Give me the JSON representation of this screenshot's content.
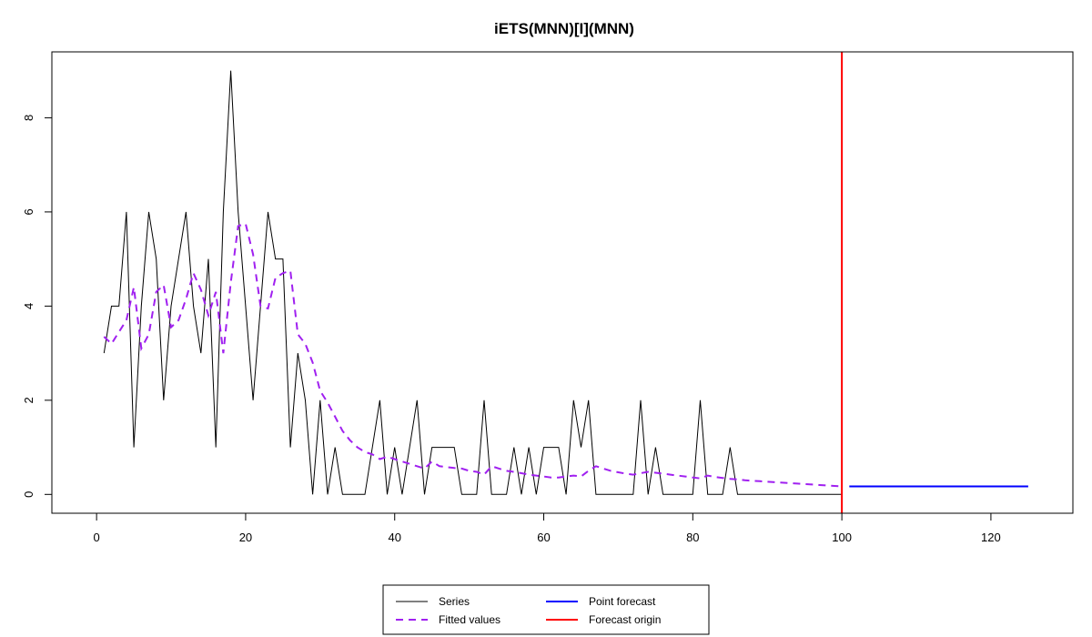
{
  "chart_data": {
    "type": "line",
    "title": "iETS(MNN)[I](MNN)",
    "xlabel": "",
    "ylabel": "",
    "xlim": [
      -6,
      131
    ],
    "ylim": [
      -0.4,
      9.4
    ],
    "xticks": [
      0,
      20,
      40,
      60,
      80,
      100,
      120
    ],
    "yticks": [
      0,
      2,
      4,
      6,
      8
    ],
    "grid": false,
    "legend_position": "bottom",
    "series": [
      {
        "name": "Series",
        "color": "#000000",
        "style": "solid",
        "x": [
          1,
          2,
          3,
          4,
          5,
          6,
          7,
          8,
          9,
          10,
          11,
          12,
          13,
          14,
          15,
          16,
          17,
          18,
          19,
          20,
          21,
          22,
          23,
          24,
          25,
          26,
          27,
          28,
          29,
          30,
          31,
          32,
          33,
          34,
          35,
          36,
          37,
          38,
          39,
          40,
          41,
          42,
          43,
          44,
          45,
          46,
          47,
          48,
          49,
          50,
          51,
          52,
          53,
          54,
          55,
          56,
          57,
          58,
          59,
          60,
          61,
          62,
          63,
          64,
          65,
          66,
          67,
          68,
          69,
          70,
          71,
          72,
          73,
          74,
          75,
          76,
          77,
          78,
          79,
          80,
          81,
          82,
          83,
          84,
          85,
          86,
          87,
          88,
          89,
          90,
          91,
          92,
          93,
          94,
          95,
          96,
          97,
          98,
          99,
          100
        ],
        "y": [
          3,
          4,
          4,
          6,
          1,
          4,
          6,
          5,
          2,
          4,
          5,
          6,
          4,
          3,
          5,
          1,
          6,
          9,
          6,
          4,
          2,
          4,
          6,
          5,
          5,
          1,
          3,
          2,
          0,
          2,
          0,
          1,
          0,
          0,
          0,
          0,
          1,
          2,
          0,
          1,
          0,
          1,
          2,
          0,
          1,
          1,
          1,
          1,
          0,
          0,
          0,
          2,
          0,
          0,
          0,
          1,
          0,
          1,
          0,
          1,
          1,
          1,
          0,
          2,
          1,
          2,
          0,
          0,
          0,
          0,
          0,
          0,
          2,
          0,
          1,
          0,
          0,
          0,
          0,
          0,
          2,
          0,
          0,
          0,
          1,
          0,
          0,
          0,
          0,
          0,
          0,
          0,
          0,
          0,
          0,
          0,
          0,
          0,
          0,
          0
        ]
      },
      {
        "name": "Fitted values",
        "color": "#a020f0",
        "style": "dashed",
        "x": [
          1,
          2,
          3,
          4,
          5,
          6,
          7,
          8,
          9,
          10,
          11,
          12,
          13,
          14,
          15,
          16,
          17,
          18,
          19,
          20,
          21,
          22,
          23,
          24,
          25,
          26,
          27,
          28,
          29,
          30,
          31,
          32,
          33,
          34,
          35,
          36,
          37,
          38,
          39,
          40,
          41,
          42,
          43,
          44,
          45,
          46,
          47,
          48,
          49,
          50,
          51,
          52,
          53,
          54,
          55,
          56,
          57,
          58,
          59,
          60,
          61,
          62,
          63,
          64,
          65,
          66,
          67,
          68,
          69,
          70,
          71,
          72,
          73,
          74,
          75,
          76,
          77,
          78,
          79,
          80,
          81,
          82,
          83,
          84,
          85,
          86,
          87,
          88,
          89,
          90,
          91,
          92,
          93,
          94,
          95,
          96,
          97,
          98,
          99,
          100
        ],
        "y": [
          3.35,
          3.2,
          3.45,
          3.7,
          4.4,
          3.1,
          3.4,
          4.3,
          4.45,
          3.55,
          3.7,
          4.15,
          4.7,
          4.35,
          3.8,
          4.3,
          3.0,
          4.5,
          5.7,
          5.75,
          5.1,
          4.0,
          3.95,
          4.6,
          4.7,
          4.75,
          3.4,
          3.2,
          2.8,
          2.2,
          1.95,
          1.65,
          1.35,
          1.15,
          1.0,
          0.9,
          0.85,
          0.75,
          0.8,
          0.75,
          0.7,
          0.65,
          0.6,
          0.55,
          0.7,
          0.6,
          0.58,
          0.56,
          0.55,
          0.5,
          0.48,
          0.42,
          0.6,
          0.55,
          0.5,
          0.48,
          0.45,
          0.42,
          0.4,
          0.38,
          0.36,
          0.36,
          0.38,
          0.4,
          0.38,
          0.5,
          0.6,
          0.55,
          0.5,
          0.47,
          0.44,
          0.42,
          0.45,
          0.48,
          0.46,
          0.44,
          0.42,
          0.4,
          0.38,
          0.36,
          0.34,
          0.4,
          0.37,
          0.35,
          0.33,
          0.32,
          0.3,
          0.29,
          0.28,
          0.27,
          0.26,
          0.25,
          0.24,
          0.23,
          0.22,
          0.21,
          0.2,
          0.19,
          0.18,
          0.17
        ]
      },
      {
        "name": "Point forecast",
        "color": "#0000ff",
        "style": "solid",
        "x": [
          101,
          125
        ],
        "y": [
          0.17,
          0.17
        ]
      }
    ],
    "vlines": [
      {
        "name": "Forecast origin",
        "color": "#ff0000",
        "x": 100
      }
    ]
  },
  "legend": {
    "items": [
      {
        "label": "Series",
        "color": "#000000",
        "dashed": false
      },
      {
        "label": "Fitted values",
        "color": "#a020f0",
        "dashed": true
      },
      {
        "label": "Point forecast",
        "color": "#0000ff",
        "dashed": false
      },
      {
        "label": "Forecast origin",
        "color": "#ff0000",
        "dashed": false
      }
    ]
  }
}
